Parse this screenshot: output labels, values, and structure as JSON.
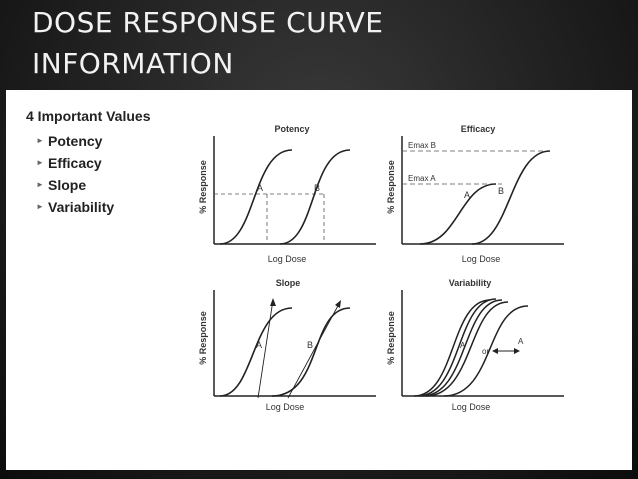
{
  "slide": {
    "title_line1": "DOSE RESPONSE CURVE",
    "title_line2": "INFORMATION"
  },
  "values": {
    "heading": "4 Important Values",
    "items": [
      {
        "label": "Potency"
      },
      {
        "label": "Efficacy"
      },
      {
        "label": "Slope"
      },
      {
        "label": "Variability"
      }
    ]
  },
  "panels": {
    "potency": {
      "title": "Potency",
      "ylabel": "% Response",
      "xlabel": "Log Dose",
      "curve_a": "A",
      "curve_b": "B"
    },
    "efficacy": {
      "title": "Efficacy",
      "ylabel": "% Response",
      "xlabel": "Log Dose",
      "emax_b": "Emax B",
      "emax_a": "Emax A",
      "curve_a": "A",
      "curve_b": "B"
    },
    "slope": {
      "title": "Slope",
      "ylabel": "% Response",
      "xlabel": "Log Dose",
      "curve_a": "A",
      "curve_b": "B"
    },
    "variability": {
      "title": "Variability",
      "ylabel": "% Response",
      "xlabel": "Log Dose",
      "curve_a": "A",
      "or_label": "or",
      "curve_a2": "A"
    }
  }
}
